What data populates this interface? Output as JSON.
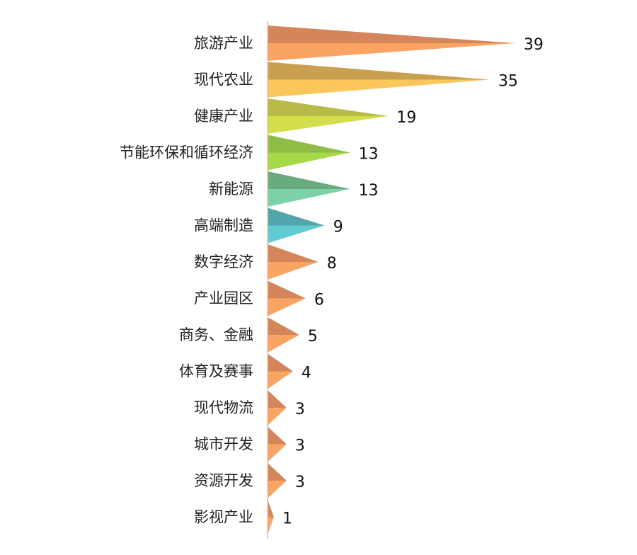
{
  "chart_data": {
    "type": "bar",
    "orientation": "horizontal",
    "bar_shape": "triangle",
    "categories": [
      "旅游产业",
      "现代农业",
      "健康产业",
      "节能环保和循环经济",
      "新能源",
      "高端制造",
      "数字经济",
      "产业园区",
      "商务、金融",
      "体育及赛事",
      "现代物流",
      "城市开发",
      "资源开发",
      "影视产业"
    ],
    "values": [
      39,
      35,
      19,
      13,
      13,
      9,
      8,
      6,
      5,
      4,
      3,
      3,
      3,
      1
    ],
    "xlim": [
      0,
      40
    ],
    "grid": false,
    "legend": "none",
    "colors": [
      [
        "#d5855a",
        "#f9a462"
      ],
      [
        "#c9a050",
        "#fbc75c"
      ],
      [
        "#b9bb48",
        "#d3de4c"
      ],
      [
        "#8ebc45",
        "#a6d94a"
      ],
      [
        "#69ab7c",
        "#7dd1a8"
      ],
      [
        "#52a6ab",
        "#61cbd4"
      ],
      [
        "#d5855a",
        "#f9a462"
      ],
      [
        "#d5855a",
        "#f9a462"
      ],
      [
        "#d5855a",
        "#f9a462"
      ],
      [
        "#d5855a",
        "#f9a462"
      ],
      [
        "#d5855a",
        "#f9a462"
      ],
      [
        "#d5855a",
        "#f9a462"
      ],
      [
        "#d5855a",
        "#f9a462"
      ],
      [
        "#d5855a",
        "#f9a462"
      ]
    ],
    "axis_color": "#e8c8b8"
  }
}
